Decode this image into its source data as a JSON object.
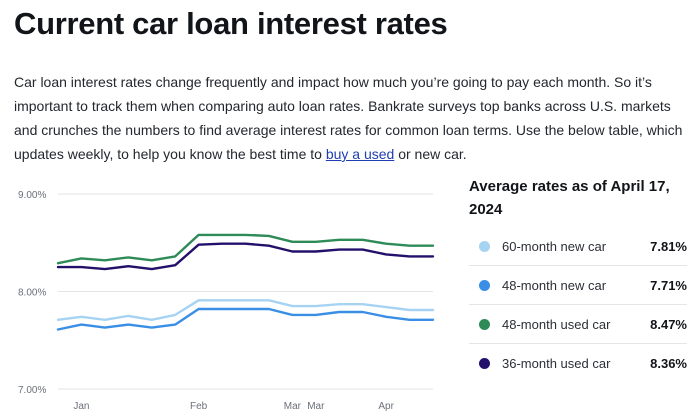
{
  "header": {
    "title": "Current car loan interest rates"
  },
  "intro": {
    "text_before": "Car loan interest rates change frequently and impact how much you’re going to pay each month. So it’s important to track them when comparing auto loan rates. Bankrate surveys top banks across U.S. markets and crunches the numbers to find average interest rates for common loan terms. Use the below table, which updates weekly, to help you know the best time to ",
    "link_text": "buy a used",
    "text_after": " or new car."
  },
  "legend": {
    "title": "Average rates as of April 17, 2024",
    "items": [
      {
        "label": "60-month new car",
        "value": "7.81%",
        "color": "#a7d3f3"
      },
      {
        "label": "48-month new car",
        "value": "7.71%",
        "color": "#3b8ee6"
      },
      {
        "label": "48-month used car",
        "value": "8.47%",
        "color": "#2e8b57"
      },
      {
        "label": "36-month used car",
        "value": "8.36%",
        "color": "#24106b"
      }
    ]
  },
  "chart_data": {
    "type": "line",
    "x": [
      "Jan 1",
      "Jan 8",
      "Jan 15",
      "Jan 22",
      "Jan 29",
      "Feb 5",
      "Feb 12",
      "Feb 19",
      "Feb 26",
      "Mar 4",
      "Mar 11",
      "Mar 18",
      "Mar 25",
      "Apr 1",
      "Apr 8",
      "Apr 15",
      "Apr 17"
    ],
    "xticks": [
      {
        "label": "Jan",
        "at": "Jan 8"
      },
      {
        "label": "Feb",
        "at": "Feb 12"
      },
      {
        "label": "Mar",
        "at": "Mar 11"
      },
      {
        "label": "Mar",
        "at": "Mar 18"
      },
      {
        "label": "Apr",
        "at": "Apr 8"
      }
    ],
    "yticks": [
      {
        "value": 7.0,
        "label": "7.00%"
      },
      {
        "value": 8.0,
        "label": "8.00%"
      },
      {
        "value": 9.0,
        "label": "9.00%"
      }
    ],
    "ylim": [
      7.0,
      9.0
    ],
    "grid": "horizontal",
    "series": [
      {
        "name": "60-month new car",
        "color": "#a7d3f3",
        "values": [
          7.71,
          7.74,
          7.71,
          7.75,
          7.71,
          7.76,
          7.91,
          7.91,
          7.91,
          7.91,
          7.85,
          7.85,
          7.87,
          7.87,
          7.84,
          7.81,
          7.81
        ]
      },
      {
        "name": "48-month new car",
        "color": "#3b8ee6",
        "values": [
          7.61,
          7.66,
          7.63,
          7.66,
          7.63,
          7.66,
          7.82,
          7.82,
          7.82,
          7.82,
          7.76,
          7.76,
          7.79,
          7.79,
          7.74,
          7.71,
          7.71
        ]
      },
      {
        "name": "48-month used car",
        "color": "#2e8b57",
        "values": [
          8.29,
          8.34,
          8.32,
          8.35,
          8.32,
          8.36,
          8.58,
          8.58,
          8.58,
          8.57,
          8.51,
          8.51,
          8.53,
          8.53,
          8.49,
          8.47,
          8.47
        ]
      },
      {
        "name": "36-month used car",
        "color": "#24106b",
        "values": [
          8.25,
          8.25,
          8.23,
          8.26,
          8.23,
          8.27,
          8.48,
          8.49,
          8.49,
          8.47,
          8.41,
          8.41,
          8.43,
          8.43,
          8.38,
          8.36,
          8.36
        ]
      }
    ]
  }
}
